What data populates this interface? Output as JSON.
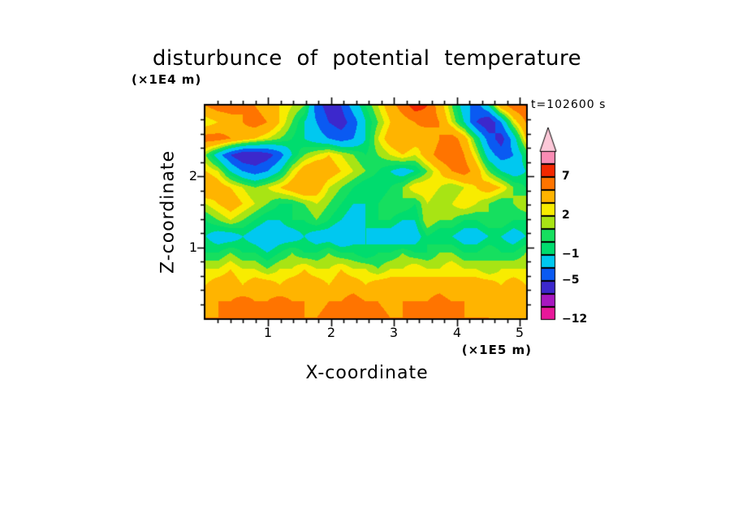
{
  "chart_data": {
    "type": "heatmap",
    "title": "disturbunce of potential temperature",
    "xlabel": "X-coordinate",
    "ylabel": "Z-coordinate",
    "x_unit": "(×1E5 m)",
    "y_unit": "(×1E4 m)",
    "time_annotation": "t=102600 s",
    "x_range": [
      0,
      5.1
    ],
    "z_range": [
      0,
      3.0
    ],
    "x_ticks": [
      1,
      2,
      3,
      4,
      5
    ],
    "z_ticks": [
      1,
      2
    ],
    "minor_tick_step": 0.2,
    "grid": {
      "rows_order": "top-to-bottom (z = 3.0 at first row, z = 0 at last row)",
      "cols": 27,
      "rows": 14,
      "values": [
        [
          5,
          6,
          6,
          5,
          5,
          4,
          3,
          2,
          1,
          -4,
          -6,
          -5,
          -2,
          0,
          2,
          4,
          6,
          8,
          7,
          4,
          1,
          -2,
          -4,
          -1,
          4,
          6,
          7
        ],
        [
          2,
          3,
          4,
          5,
          6,
          5,
          3,
          1,
          -1,
          -3,
          -5,
          -6,
          -4,
          -1,
          1,
          3,
          4,
          5,
          6,
          5,
          2,
          -1,
          -5,
          -7,
          -3,
          2,
          5
        ],
        [
          6,
          6,
          5,
          4,
          3,
          2,
          1,
          0,
          -1,
          -2,
          -3,
          -4,
          -3,
          -1,
          2,
          4,
          5,
          4,
          3,
          5,
          6,
          4,
          0,
          -4,
          -6,
          -2,
          3
        ],
        [
          1,
          -2,
          -5,
          -7,
          -7,
          -6,
          -4,
          -1,
          1,
          2,
          3,
          2,
          1,
          0,
          1,
          2,
          3,
          2,
          4,
          6,
          7,
          5,
          2,
          -2,
          -4,
          -3,
          0
        ],
        [
          3,
          2,
          -1,
          -3,
          -4,
          -3,
          -1,
          2,
          4,
          5,
          4,
          3,
          2,
          1,
          0,
          -1,
          -2,
          -1,
          1,
          3,
          5,
          6,
          4,
          1,
          -1,
          -2,
          -1
        ],
        [
          5,
          4,
          3,
          2,
          1,
          2,
          3,
          4,
          5,
          4,
          2,
          1,
          0,
          -1,
          -1,
          0,
          1,
          3,
          3,
          2,
          1,
          2,
          3,
          4,
          3,
          1,
          0
        ],
        [
          2,
          3,
          4,
          3,
          2,
          1,
          0,
          0,
          1,
          2,
          1,
          0,
          -1,
          -1,
          0,
          1,
          1,
          0,
          2,
          1,
          2,
          3,
          2,
          1,
          0,
          1,
          2
        ],
        [
          0,
          1,
          2,
          1,
          0,
          -1,
          -1,
          0,
          0,
          1,
          0,
          -1,
          -2,
          -1,
          0,
          0,
          -1,
          -1,
          2,
          1,
          1,
          0,
          0,
          1,
          1,
          0,
          0
        ],
        [
          -1,
          -2,
          -2,
          -1,
          -2,
          -3,
          -2,
          -2,
          -1,
          -2,
          -2,
          -3,
          -2,
          -1,
          -2,
          -2,
          -3,
          -2,
          0,
          -1,
          -1,
          -2,
          -2,
          -1,
          -1,
          -2,
          -1
        ],
        [
          0,
          0,
          1,
          0,
          0,
          -1,
          0,
          1,
          0,
          0,
          1,
          0,
          0,
          -1,
          0,
          0,
          1,
          0,
          0,
          1,
          1,
          0,
          0,
          1,
          0,
          0,
          1
        ],
        [
          2,
          2,
          3,
          2,
          2,
          1,
          2,
          2,
          3,
          2,
          2,
          3,
          2,
          2,
          1,
          2,
          2,
          3,
          2,
          2,
          3,
          2,
          2,
          1,
          2,
          2,
          2
        ],
        [
          3,
          4,
          4,
          3,
          4,
          4,
          3,
          4,
          4,
          4,
          3,
          4,
          4,
          3,
          4,
          4,
          4,
          3,
          4,
          4,
          3,
          4,
          4,
          4,
          3,
          4,
          3
        ],
        [
          4,
          5,
          5,
          6,
          5,
          5,
          6,
          5,
          5,
          4,
          5,
          5,
          6,
          5,
          5,
          4,
          5,
          5,
          5,
          6,
          5,
          5,
          4,
          5,
          5,
          4,
          4
        ],
        [
          5,
          5,
          6,
          6,
          6,
          5,
          6,
          6,
          5,
          5,
          6,
          6,
          5,
          6,
          6,
          5,
          5,
          6,
          5,
          5,
          6,
          5,
          5,
          5,
          4,
          4,
          4
        ]
      ]
    }
  },
  "colorbar": {
    "tick_values": [
      7,
      2,
      -1,
      -5,
      -12
    ],
    "boundaries": [
      -12,
      -9,
      -7,
      -5,
      -3,
      -1,
      0,
      1,
      2,
      3,
      5,
      7,
      9,
      11
    ],
    "colors": [
      "#f472b6",
      "#e8189a",
      "#a818c0",
      "#3c28cc",
      "#0a5af2",
      "#00c8f0",
      "#00dc6e",
      "#16df5f",
      "#a8e414",
      "#f8ec00",
      "#ffb400",
      "#ff7400",
      "#f32800",
      "#fa8cb4",
      "#fcc8d8"
    ]
  }
}
